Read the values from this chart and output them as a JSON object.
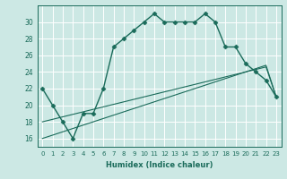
{
  "xlabel": "Humidex (Indice chaleur)",
  "x_values": [
    0,
    1,
    2,
    3,
    4,
    5,
    6,
    7,
    8,
    9,
    10,
    11,
    12,
    13,
    14,
    15,
    16,
    17,
    18,
    19,
    20,
    21,
    22,
    23
  ],
  "humidex": [
    22,
    20,
    18,
    16,
    19,
    19,
    22,
    27,
    28,
    29,
    30,
    31,
    30,
    30,
    30,
    30,
    31,
    30,
    27,
    27,
    25,
    24,
    23,
    21
  ],
  "line1_x": [
    0,
    1,
    2,
    3,
    4,
    5,
    6,
    7,
    8,
    9,
    10,
    11,
    12,
    13,
    14,
    15,
    16,
    17,
    18,
    19,
    20,
    21,
    22,
    23
  ],
  "line1_y": [
    18,
    18.3,
    18.6,
    18.9,
    19.2,
    19.5,
    19.8,
    20.1,
    20.4,
    20.7,
    21.0,
    21.3,
    21.6,
    21.9,
    22.2,
    22.5,
    22.8,
    23.1,
    23.4,
    23.7,
    24.0,
    24.3,
    24.6,
    21.0
  ],
  "line2_x": [
    0,
    1,
    2,
    3,
    4,
    5,
    6,
    7,
    8,
    9,
    10,
    11,
    12,
    13,
    14,
    15,
    16,
    17,
    18,
    19,
    20,
    21,
    22,
    23
  ],
  "line2_y": [
    16,
    16.4,
    16.8,
    17.2,
    17.6,
    18.0,
    18.4,
    18.8,
    19.2,
    19.6,
    20.0,
    20.4,
    20.8,
    21.2,
    21.6,
    22.0,
    22.4,
    22.8,
    23.2,
    23.6,
    24.0,
    24.4,
    24.8,
    21.0
  ],
  "ylim": [
    15,
    32
  ],
  "xlim": [
    -0.5,
    23.5
  ],
  "yticks": [
    16,
    18,
    20,
    22,
    24,
    26,
    28,
    30
  ],
  "xticks": [
    0,
    1,
    2,
    3,
    4,
    5,
    6,
    7,
    8,
    9,
    10,
    11,
    12,
    13,
    14,
    15,
    16,
    17,
    18,
    19,
    20,
    21,
    22,
    23
  ],
  "line_color": "#1a6b5a",
  "bg_color": "#cce8e4",
  "grid_color": "#ffffff",
  "marker": "D",
  "marker_size": 2.5,
  "linewidth_main": 1.0,
  "linewidth_ref": 0.8
}
